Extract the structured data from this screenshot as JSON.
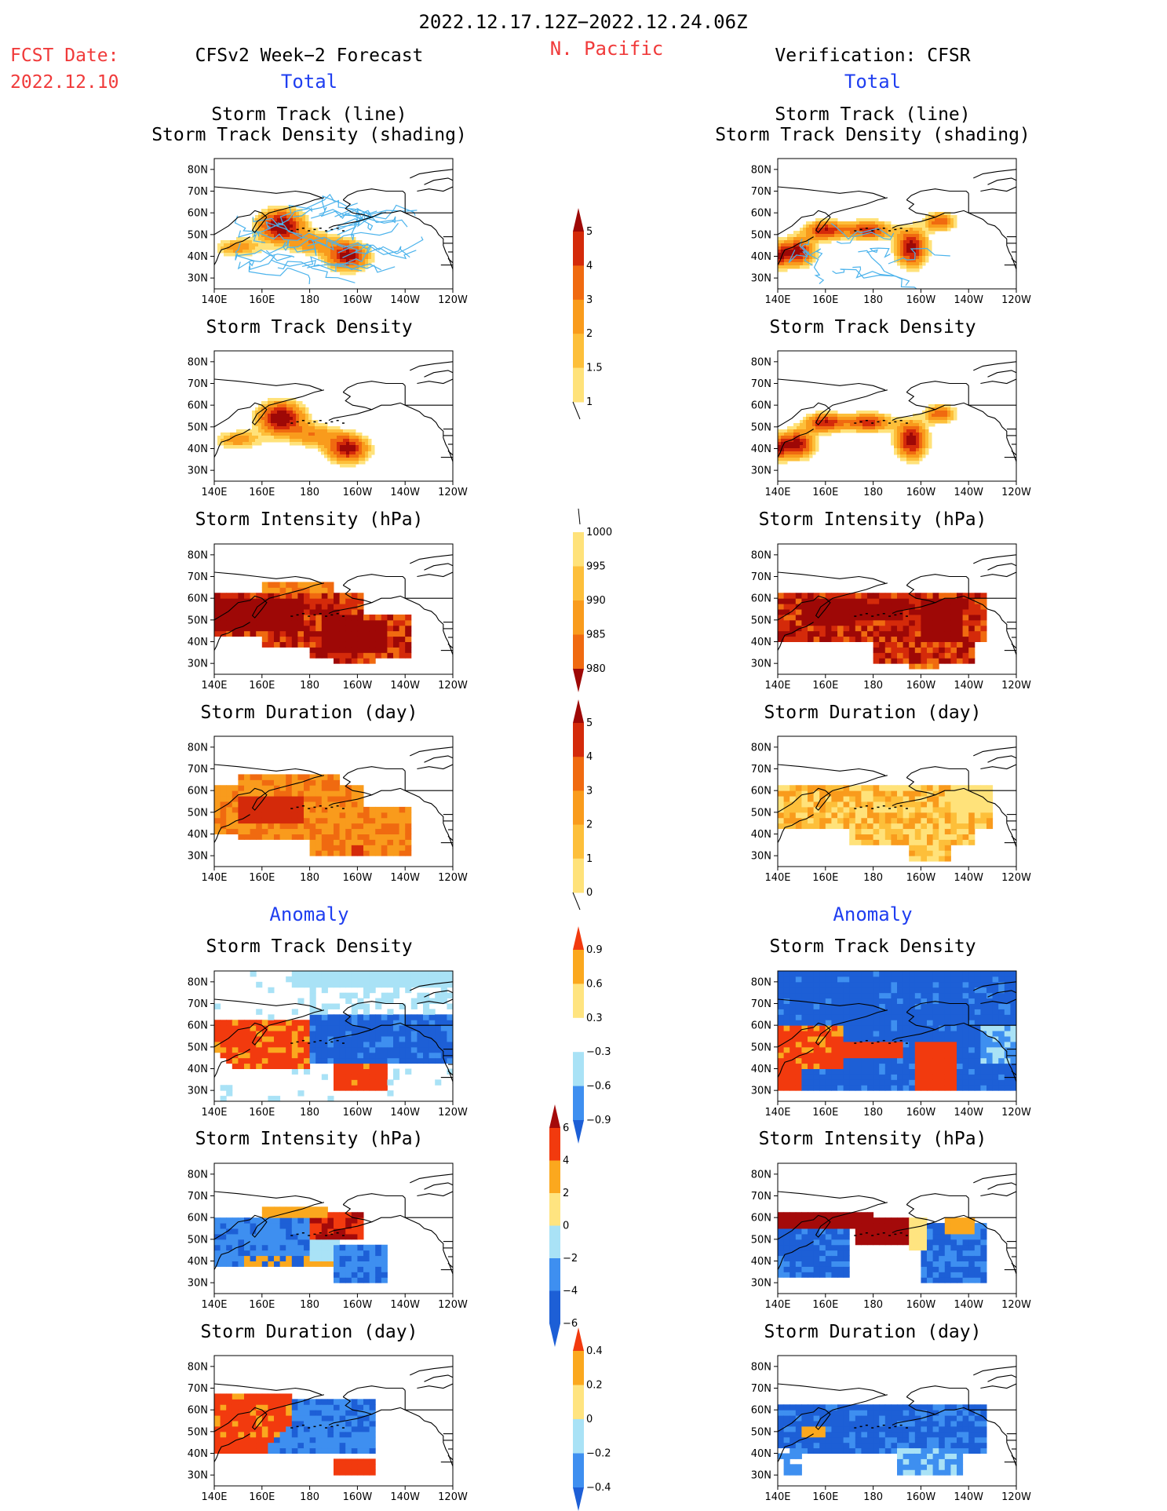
{
  "header": {
    "period": "2022.12.17.12Z−2022.12.24.06Z",
    "region": "N. Pacific",
    "fcst_label": "FCST Date:",
    "fcst_date": "2022.12.10",
    "left_title": "CFSv2 Week−2 Forecast",
    "right_title": "Verification: CFSR",
    "total_label": "Total",
    "anomaly_label": "Anomaly"
  },
  "axes": {
    "lat_ticks": [
      "80N",
      "70N",
      "60N",
      "50N",
      "40N",
      "30N"
    ],
    "lon_ticks": [
      "140E",
      "160E",
      "180",
      "160W",
      "140W",
      "120W"
    ]
  },
  "colors": {
    "full": [
      "#fff9b8",
      "#ffe27a",
      "#fdbf3a",
      "#f99b1c",
      "#f06a10",
      "#d42a0a",
      "#9e0806"
    ],
    "anom": [
      "#1d5fd6",
      "#3e8ff0",
      "#a9e2f6",
      "#ffffff",
      "#ffe480",
      "#fba81e",
      "#f23a0e",
      "#a40a0a"
    ],
    "land_line": "#000000",
    "track_line": "#4bb3ec"
  },
  "colorbars": [
    {
      "id": "cb_density",
      "labels": [
        "1",
        "1.5",
        "2",
        "3",
        "4",
        "5"
      ]
    },
    {
      "id": "cb_intensity",
      "labels": [
        "1000",
        "995",
        "990",
        "985",
        "980"
      ]
    },
    {
      "id": "cb_duration",
      "labels": [
        "0",
        "1",
        "2",
        "3",
        "4",
        "5"
      ]
    },
    {
      "id": "cb_anom_density",
      "labels": [
        "−0.9",
        "−0.6",
        "−0.3",
        "0.3",
        "0.6",
        "0.9"
      ]
    },
    {
      "id": "cb_anom_intensity",
      "labels": [
        "−6",
        "−4",
        "−2",
        "0",
        "2",
        "4",
        "6"
      ]
    },
    {
      "id": "cb_anom_duration",
      "labels": [
        "−0.4",
        "−0.2",
        "0",
        "0.2",
        "0.4"
      ]
    }
  ],
  "chart_data": [
    {
      "type": "heatmap",
      "title_lines": [
        "Storm Track (line)",
        "Storm Track Density (shading)"
      ],
      "column": "forecast",
      "section": "total",
      "variable": "storm track density with tracks"
    },
    {
      "type": "heatmap",
      "title_lines": [
        "Storm Track (line)",
        "Storm Track Density (shading)"
      ],
      "column": "verification",
      "section": "total",
      "variable": "storm track density with tracks"
    },
    {
      "type": "heatmap",
      "title_lines": [
        "Storm Track Density"
      ],
      "column": "forecast",
      "section": "total",
      "variable": "storm track density"
    },
    {
      "type": "heatmap",
      "title_lines": [
        "Storm Track Density"
      ],
      "column": "verification",
      "section": "total",
      "variable": "storm track density"
    },
    {
      "type": "heatmap",
      "title_lines": [
        "Storm Intensity (hPa)"
      ],
      "column": "forecast",
      "section": "total",
      "variable": "storm intensity",
      "units": "hPa"
    },
    {
      "type": "heatmap",
      "title_lines": [
        "Storm Intensity (hPa)"
      ],
      "column": "verification",
      "section": "total",
      "variable": "storm intensity",
      "units": "hPa"
    },
    {
      "type": "heatmap",
      "title_lines": [
        "Storm Duration (day)"
      ],
      "column": "forecast",
      "section": "total",
      "variable": "storm duration",
      "units": "day"
    },
    {
      "type": "heatmap",
      "title_lines": [
        "Storm Duration (day)"
      ],
      "column": "verification",
      "section": "total",
      "variable": "storm duration",
      "units": "day"
    },
    {
      "type": "heatmap",
      "title_lines": [
        "Storm Track Density"
      ],
      "column": "forecast",
      "section": "anomaly",
      "variable": "storm track density anomaly"
    },
    {
      "type": "heatmap",
      "title_lines": [
        "Storm Track Density"
      ],
      "column": "verification",
      "section": "anomaly",
      "variable": "storm track density anomaly"
    },
    {
      "type": "heatmap",
      "title_lines": [
        "Storm Intensity (hPa)"
      ],
      "column": "forecast",
      "section": "anomaly",
      "variable": "storm intensity anomaly",
      "units": "hPa"
    },
    {
      "type": "heatmap",
      "title_lines": [
        "Storm Intensity (hPa)"
      ],
      "column": "verification",
      "section": "anomaly",
      "variable": "storm intensity anomaly",
      "units": "hPa"
    },
    {
      "type": "heatmap",
      "title_lines": [
        "Storm Duration (day)"
      ],
      "column": "forecast",
      "section": "anomaly",
      "variable": "storm duration anomaly",
      "units": "day"
    },
    {
      "type": "heatmap",
      "title_lines": [
        "Storm Duration (day)"
      ],
      "column": "verification",
      "section": "anomaly",
      "variable": "storm duration anomaly",
      "units": "day"
    }
  ]
}
